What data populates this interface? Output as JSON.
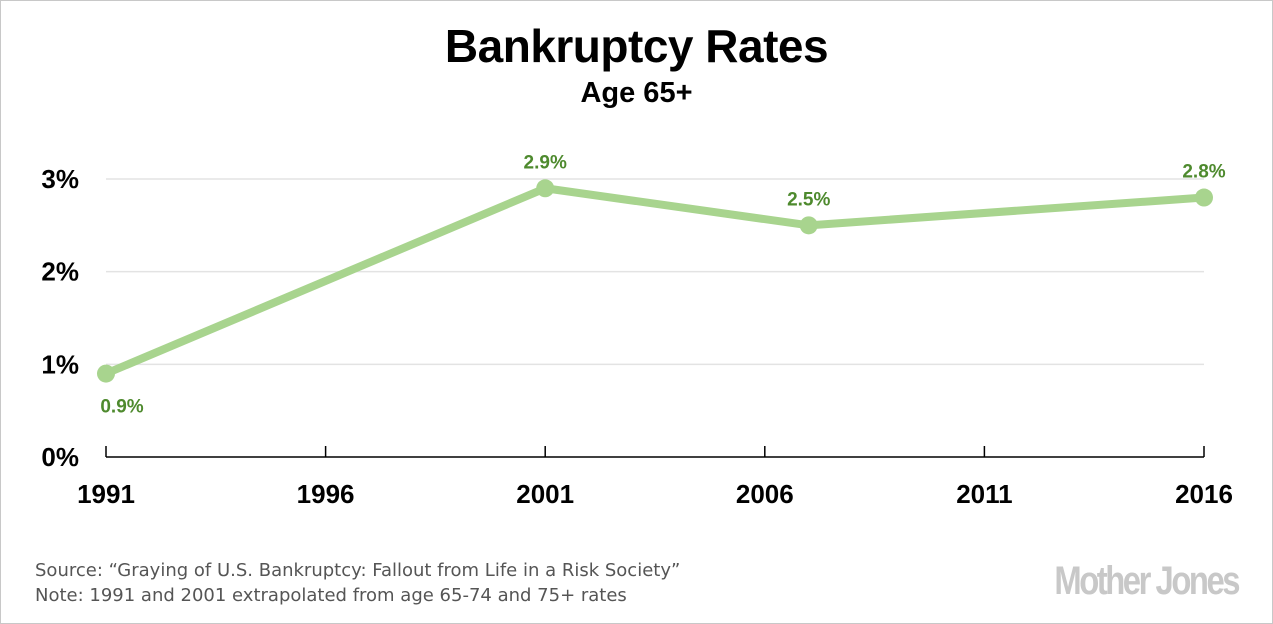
{
  "chart_data": {
    "type": "line",
    "title": "Bankruptcy Rates",
    "subtitle": "Age 65+",
    "xlabel": "",
    "ylabel": "",
    "xlim": [
      1991,
      2016
    ],
    "ylim": [
      0,
      3
    ],
    "x_ticks": [
      "1991",
      "1996",
      "2001",
      "2006",
      "2011",
      "2016"
    ],
    "y_ticks": [
      "0%",
      "1%",
      "2%",
      "3%"
    ],
    "grid": true,
    "series": [
      {
        "name": "Age 65+",
        "color": "#a8d48e",
        "label_color": "#4e8a2e",
        "x": [
          1991,
          2001,
          2007,
          2016
        ],
        "values": [
          0.9,
          2.9,
          2.5,
          2.8
        ],
        "labels": [
          "0.9%",
          "2.9%",
          "2.5%",
          "2.8%"
        ]
      }
    ]
  },
  "footer": {
    "source": "Source: “Graying of U.S. Bankruptcy: Fallout from Life in a Risk Society”",
    "note": "Note: 1991 and 2001 extrapolated from age 65-74 and 75+ rates",
    "logo": "Mother Jones"
  }
}
